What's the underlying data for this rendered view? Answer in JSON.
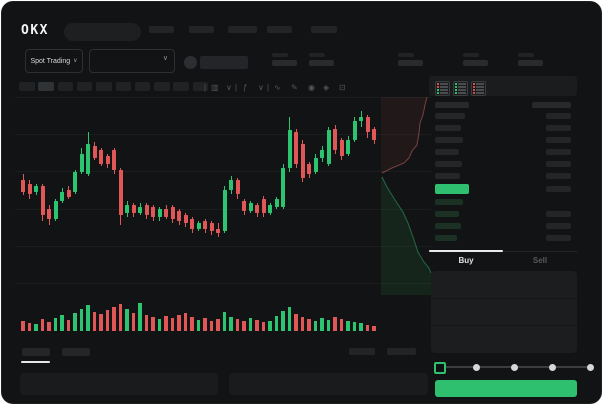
{
  "header": {
    "logo": "OKX",
    "search": {
      "placeholder": ""
    },
    "nav_placeholder_widths": [
      25,
      25,
      29,
      25,
      26
    ]
  },
  "market_bar": {
    "market_type_selector": {
      "label": "Spot Trading",
      "chevron": "∨"
    },
    "symbol_selector": {
      "chevron": "∨"
    },
    "ticker_placeholder_x": [
      271,
      308,
      397,
      462,
      517
    ]
  },
  "chart_toolbar": {
    "timeframe_count": 10,
    "active_timeframe_index": 1,
    "items": [
      {
        "name": "separator",
        "glyph": "|"
      },
      {
        "name": "candle-style-icon",
        "glyph": "▥"
      },
      {
        "name": "chevron-down-icon",
        "glyph": "∨"
      },
      {
        "name": "separator",
        "glyph": "|"
      },
      {
        "name": "indicator-icon",
        "glyph": "ƒ"
      },
      {
        "name": "chevron-down-icon",
        "glyph": "∨"
      },
      {
        "name": "separator",
        "glyph": "|"
      },
      {
        "name": "line-type-icon",
        "glyph": "∿"
      },
      {
        "name": "draw-tool-icon",
        "glyph": "✎"
      },
      {
        "name": "camera-icon",
        "glyph": "◉"
      },
      {
        "name": "settings-icon",
        "glyph": "◈"
      },
      {
        "name": "fullscreen-icon",
        "glyph": "⊡"
      }
    ]
  },
  "order_book": {
    "mode_icons": [
      {
        "name": "book-both-icon",
        "rows": [
          "#d05050",
          "#d05050",
          "#2ec06f",
          "#2ec06f"
        ]
      },
      {
        "name": "book-bids-icon",
        "rows": [
          "#2ec06f",
          "#2ec06f",
          "#2ec06f",
          "#2ec06f"
        ]
      },
      {
        "name": "book-asks-icon",
        "rows": [
          "#d05050",
          "#d05050",
          "#d05050",
          "#d05050"
        ]
      }
    ],
    "header_bar_widths": [
      34,
      39
    ],
    "ask_row_widths": [
      30,
      26,
      28,
      24,
      27,
      25
    ],
    "last_price_highlight_color": "#2ec06f",
    "bid_rows": [
      {
        "w": 28,
        "right_bar": false
      },
      {
        "w": 24,
        "right_bar": true
      },
      {
        "w": 26,
        "right_bar": true
      },
      {
        "w": 22,
        "right_bar": true
      }
    ]
  },
  "trade_panel": {
    "tabs": [
      {
        "label": "Buy",
        "active": true
      },
      {
        "label": "Sell",
        "active": false
      }
    ],
    "form_field_count": 3,
    "slider": {
      "stops": 5,
      "value_index": 0
    },
    "submit_button": {
      "label": "",
      "color": "#2ec06f"
    }
  },
  "bottom_bar": {
    "left_tab_placeholders": 2,
    "active_left_tab_index": 0,
    "right_placeholder_widths": [
      26,
      29
    ],
    "panel_count": 2
  },
  "colors": {
    "up": "#2cc470",
    "down": "#df5757",
    "background": "#121314",
    "grid": "#1a1c1e",
    "placeholder": "#242628",
    "placeholder_dim": "#1f2123",
    "accent_green": "#2ec06f",
    "accent_red": "#d05050",
    "text": "#d9dbdc",
    "text_dim": "#56595c"
  },
  "chart_data": {
    "type": "candlestick",
    "title": "",
    "xlabel": "",
    "ylabel": "",
    "note": "No axis tick labels are visible in the screenshot (placeholder UI); OHLC values are in a relative 0-100 price scale read from pixel positions, left to right.",
    "grid_y_screen": [
      96,
      133,
      170,
      208,
      245,
      282
    ],
    "candles_ohlc": [
      [
        58,
        61,
        50,
        52
      ],
      [
        56,
        58,
        48,
        51
      ],
      [
        52,
        56,
        50,
        55
      ],
      [
        55,
        56,
        37,
        40
      ],
      [
        43,
        45,
        35,
        38
      ],
      [
        38,
        48,
        37,
        47
      ],
      [
        47,
        54,
        46,
        52
      ],
      [
        53,
        55,
        48,
        49
      ],
      [
        52,
        63,
        51,
        62
      ],
      [
        62,
        74,
        61,
        71
      ],
      [
        61,
        82,
        60,
        76
      ],
      [
        75,
        77,
        68,
        69
      ],
      [
        73,
        74,
        65,
        66
      ],
      [
        70,
        71,
        64,
        66
      ],
      [
        73,
        74,
        61,
        63
      ],
      [
        63,
        64,
        35,
        40
      ],
      [
        41,
        47,
        39,
        45
      ],
      [
        45,
        46,
        39,
        41
      ],
      [
        41,
        46,
        40,
        44
      ],
      [
        45,
        46,
        38,
        40
      ],
      [
        44,
        45,
        37,
        39
      ],
      [
        39,
        44,
        37,
        43
      ],
      [
        43,
        45,
        38,
        39
      ],
      [
        44,
        45,
        36,
        38
      ],
      [
        42,
        43,
        35,
        37
      ],
      [
        40,
        41,
        34,
        36
      ],
      [
        38,
        39,
        31,
        33
      ],
      [
        33,
        37,
        32,
        36
      ],
      [
        37,
        38,
        31,
        33
      ],
      [
        36,
        37,
        30,
        32
      ],
      [
        33,
        36,
        29,
        31
      ],
      [
        32,
        55,
        31,
        53
      ],
      [
        53,
        60,
        51,
        58
      ],
      [
        58,
        59,
        48,
        51
      ],
      [
        47,
        48,
        40,
        42
      ],
      [
        42,
        47,
        41,
        46
      ],
      [
        45,
        46,
        39,
        41
      ],
      [
        48,
        50,
        39,
        41
      ],
      [
        41,
        46,
        40,
        45
      ],
      [
        44,
        49,
        43,
        48
      ],
      [
        44,
        66,
        43,
        64
      ],
      [
        64,
        90,
        62,
        83
      ],
      [
        82,
        84,
        64,
        66
      ],
      [
        76,
        78,
        57,
        59
      ],
      [
        66,
        67,
        59,
        61
      ],
      [
        62,
        71,
        61,
        69
      ],
      [
        69,
        75,
        67,
        73
      ],
      [
        66,
        85,
        65,
        83
      ],
      [
        84,
        86,
        71,
        73
      ],
      [
        78,
        79,
        68,
        70
      ],
      [
        71,
        80,
        70,
        78
      ],
      [
        78,
        90,
        77,
        88
      ],
      [
        88,
        93,
        85,
        90
      ],
      [
        90,
        91,
        79,
        82
      ],
      [
        84,
        85,
        76,
        78
      ]
    ],
    "volume": [
      10,
      8,
      7,
      12,
      9,
      13,
      16,
      11,
      18,
      22,
      26,
      19,
      17,
      21,
      24,
      27,
      22,
      18,
      28,
      16,
      14,
      12,
      15,
      13,
      16,
      18,
      14,
      11,
      13,
      10,
      12,
      19,
      14,
      12,
      10,
      13,
      11,
      9,
      10,
      15,
      20,
      24,
      17,
      14,
      12,
      10,
      13,
      11,
      14,
      12,
      10,
      9,
      8,
      6,
      5
    ],
    "depth": {
      "asks_line_screen": [
        [
          426,
          96
        ],
        [
          424,
          104
        ],
        [
          422,
          114
        ],
        [
          419,
          122
        ],
        [
          418,
          132
        ],
        [
          416,
          144
        ],
        [
          411,
          150
        ],
        [
          408,
          157
        ],
        [
          403,
          162
        ],
        [
          391,
          167
        ],
        [
          381,
          172
        ]
      ],
      "bids_line_screen": [
        [
          381,
          176
        ],
        [
          386,
          186
        ],
        [
          394,
          199
        ],
        [
          402,
          211
        ],
        [
          407,
          222
        ],
        [
          412,
          236
        ],
        [
          417,
          251
        ],
        [
          423,
          261
        ],
        [
          428,
          267
        ],
        [
          430,
          272
        ]
      ]
    }
  }
}
